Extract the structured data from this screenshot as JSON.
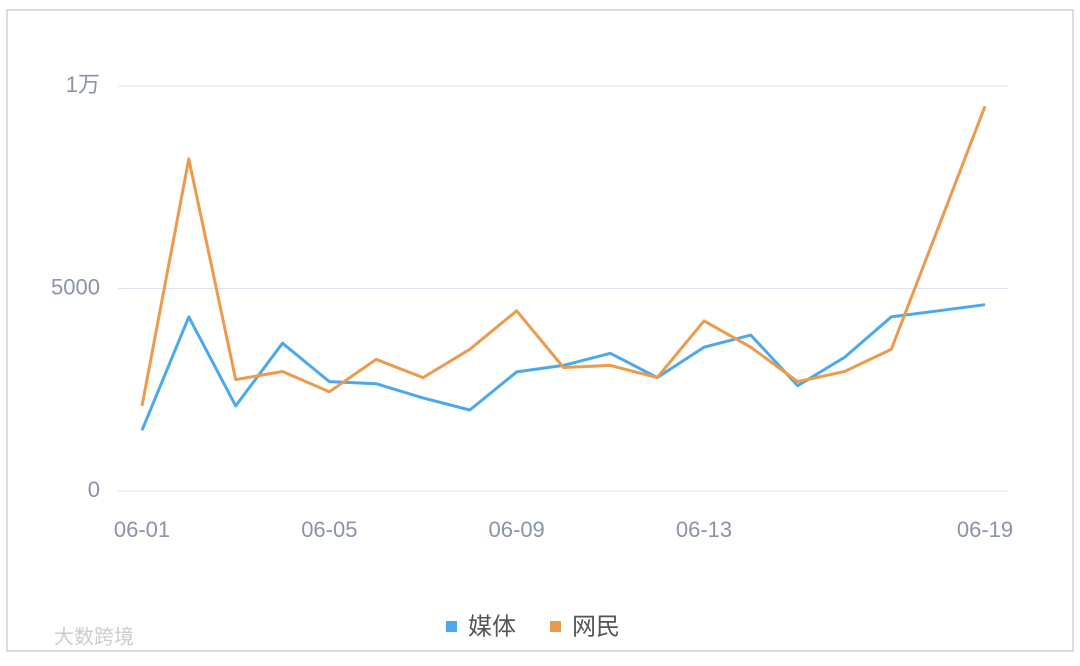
{
  "chart_data": {
    "type": "line",
    "categories": [
      "06-01",
      null,
      null,
      null,
      "06-05",
      null,
      null,
      null,
      "06-09",
      null,
      null,
      null,
      "06-13",
      null,
      null,
      null,
      null,
      null,
      "06-19"
    ],
    "series": [
      {
        "name": "媒体",
        "color": "#4aa8ec",
        "values": [
          1500,
          4300,
          2100,
          3650,
          2700,
          2650,
          2300,
          2000,
          2940,
          3100,
          3400,
          2800,
          3550,
          3850,
          2600,
          3300,
          4300,
          4450,
          4600
        ]
      },
      {
        "name": "网民",
        "color": "#ec9a4c",
        "values": [
          2100,
          8200,
          2750,
          2950,
          2450,
          3250,
          2800,
          3500,
          4450,
          3050,
          3100,
          2800,
          4200,
          3550,
          2700,
          2950,
          3500,
          6500,
          9500
        ]
      }
    ],
    "ylim": [
      0,
      10000
    ],
    "yticks": [
      0,
      5000,
      {
        "value": 10000,
        "label": "1万"
      }
    ],
    "grid": true,
    "legend": "bottom",
    "watermark": "大数跨境"
  }
}
